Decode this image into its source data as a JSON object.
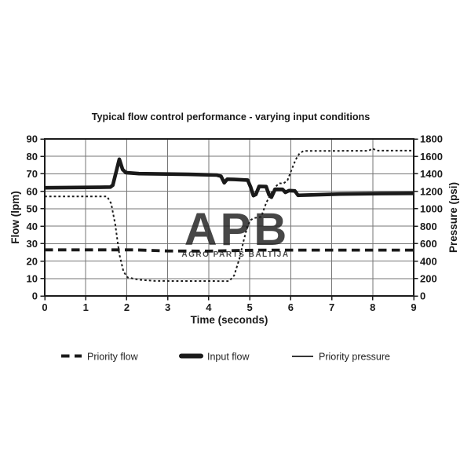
{
  "colors": {
    "line": "#1a1a1a",
    "grid": "#757575",
    "border": "#1c1c1c",
    "watermark": "#b6b6b6",
    "background": "#ffffff"
  },
  "watermark": {
    "text": "APB",
    "subtext": "AGRO PARTS BALTIJA"
  },
  "chart_data": {
    "type": "line",
    "title": "Typical flow control performance - varying input conditions",
    "xlabel": "Time (seconds)",
    "ylabel_left": "Flow (lpm)",
    "ylabel_right": "Pressure (psi)",
    "xlim": [
      0,
      9
    ],
    "ylim_left": [
      0,
      90
    ],
    "ylim_right": [
      0,
      1800
    ],
    "xticks": [
      0,
      1,
      2,
      3,
      4,
      5,
      6,
      7,
      8,
      9
    ],
    "yticks_left": [
      0,
      10,
      20,
      30,
      40,
      50,
      60,
      70,
      80,
      90
    ],
    "yticks_right": [
      0,
      200,
      400,
      600,
      800,
      1000,
      1200,
      1400,
      1600,
      1800
    ],
    "grid": true,
    "legend_position": "bottom",
    "series": [
      {
        "name": "Priority flow",
        "axis": "left",
        "style": "dashed",
        "width": 3.8,
        "points": [
          [
            0,
            26.4
          ],
          [
            2.2,
            26.4
          ],
          [
            3.0,
            25.8
          ],
          [
            4.0,
            25.7
          ],
          [
            4.8,
            26.1
          ],
          [
            5.2,
            26.3
          ],
          [
            9,
            26.3
          ]
        ]
      },
      {
        "name": "Input flow",
        "axis": "left",
        "style": "solid",
        "width": 4.6,
        "points": [
          [
            0,
            62
          ],
          [
            1.3,
            62.3
          ],
          [
            1.6,
            62.4
          ],
          [
            1.66,
            63.5
          ],
          [
            1.82,
            78.4
          ],
          [
            1.9,
            72.5
          ],
          [
            1.98,
            70.7
          ],
          [
            2.3,
            70.1
          ],
          [
            3.5,
            69.7
          ],
          [
            4.2,
            69.3
          ],
          [
            4.3,
            68.6
          ],
          [
            4.38,
            64.9
          ],
          [
            4.45,
            66.9
          ],
          [
            4.62,
            66.8
          ],
          [
            4.95,
            66.4
          ],
          [
            5.02,
            62.5
          ],
          [
            5.09,
            57.5
          ],
          [
            5.15,
            58.2
          ],
          [
            5.23,
            62.8
          ],
          [
            5.4,
            62.7
          ],
          [
            5.47,
            58
          ],
          [
            5.53,
            56.6
          ],
          [
            5.62,
            61.2
          ],
          [
            5.8,
            61.1
          ],
          [
            5.87,
            59.4
          ],
          [
            5.96,
            60.4
          ],
          [
            6.1,
            60.2
          ],
          [
            6.18,
            57.7
          ],
          [
            6.5,
            57.9
          ],
          [
            7.2,
            58.4
          ],
          [
            8.2,
            58.7
          ],
          [
            9,
            58.8
          ]
        ]
      },
      {
        "name": "Priority pressure",
        "axis": "right",
        "style": "dotted",
        "width": 2,
        "points": [
          [
            0,
            1140
          ],
          [
            1.52,
            1140
          ],
          [
            1.62,
            1060
          ],
          [
            1.72,
            820
          ],
          [
            1.82,
            480
          ],
          [
            1.92,
            280
          ],
          [
            2.02,
            212
          ],
          [
            2.3,
            185
          ],
          [
            2.7,
            172
          ],
          [
            4.5,
            170
          ],
          [
            4.62,
            235
          ],
          [
            4.75,
            430
          ],
          [
            4.85,
            630
          ],
          [
            4.95,
            810
          ],
          [
            5.03,
            872
          ],
          [
            5.1,
            893
          ],
          [
            5.28,
            906
          ],
          [
            5.4,
            1065
          ],
          [
            5.52,
            1175
          ],
          [
            5.63,
            1252
          ],
          [
            5.72,
            1292
          ],
          [
            5.82,
            1288
          ],
          [
            5.92,
            1325
          ],
          [
            6.02,
            1445
          ],
          [
            6.12,
            1562
          ],
          [
            6.22,
            1638
          ],
          [
            6.32,
            1662
          ],
          [
            7.9,
            1664
          ],
          [
            7.99,
            1690
          ],
          [
            8.1,
            1666
          ],
          [
            9,
            1666
          ]
        ]
      }
    ]
  }
}
